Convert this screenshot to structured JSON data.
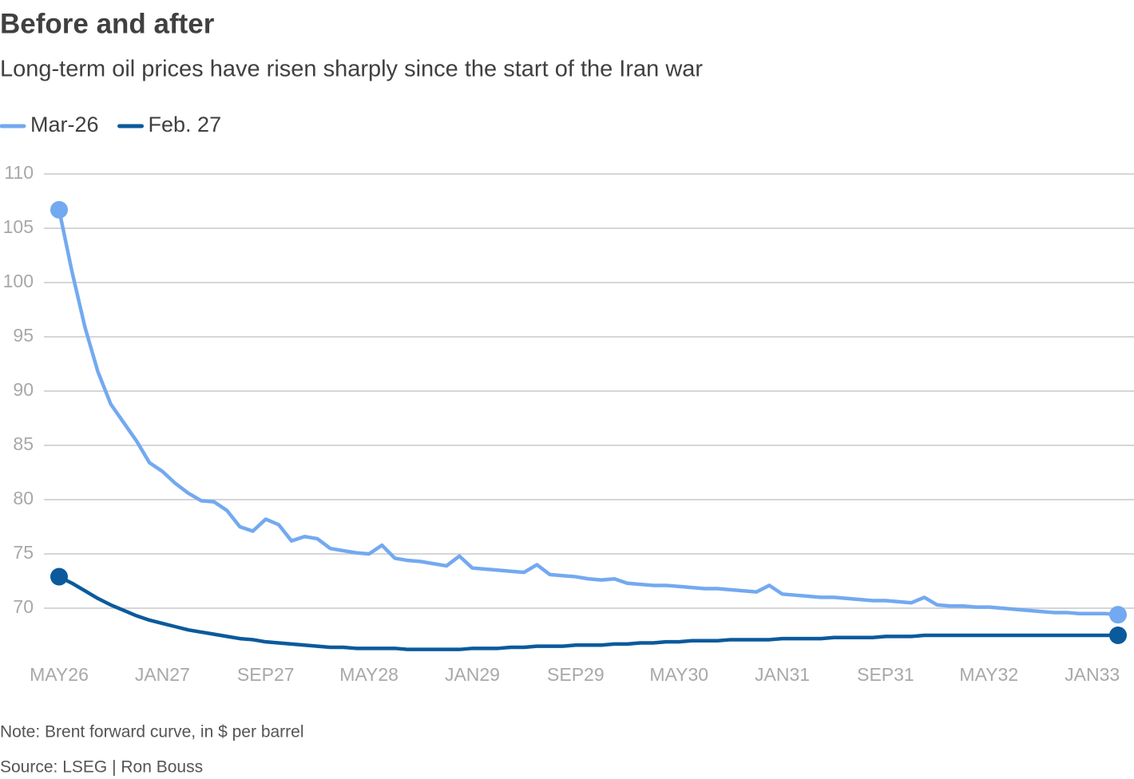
{
  "chart_data": {
    "type": "line",
    "title": "Before and after",
    "subtitle": "Long-term oil prices have risen sharply since the start of the Iran war",
    "note": "Note: Brent forward curve, in $ per barrel",
    "source": "Source: LSEG | Ron Bouss",
    "categories": [
      "MAY26",
      null,
      null,
      null,
      null,
      null,
      null,
      null,
      "JAN27",
      null,
      null,
      null,
      null,
      null,
      null,
      null,
      "SEP27",
      null,
      null,
      null,
      null,
      null,
      null,
      null,
      "MAY28",
      null,
      null,
      null,
      null,
      null,
      null,
      null,
      "JAN29",
      null,
      null,
      null,
      null,
      null,
      null,
      null,
      "SEP29",
      null,
      null,
      null,
      null,
      null,
      null,
      null,
      "MAY30",
      null,
      null,
      null,
      null,
      null,
      null,
      null,
      "JAN31",
      null,
      null,
      null,
      null,
      null,
      null,
      null,
      "SEP31",
      null,
      null,
      null,
      null,
      null,
      null,
      null,
      "MAY32",
      null,
      null,
      null,
      null,
      null,
      null,
      null,
      "JAN33",
      null,
      null
    ],
    "series": [
      {
        "name": "Mar-26",
        "color": "#73a9f0",
        "values": [
          106.7,
          101.0,
          95.9,
          91.8,
          88.8,
          87.1,
          85.4,
          83.4,
          82.6,
          81.5,
          80.6,
          79.9,
          79.8,
          79.0,
          77.5,
          77.1,
          78.2,
          77.7,
          76.2,
          76.6,
          76.4,
          75.5,
          75.3,
          75.1,
          75.0,
          75.8,
          74.6,
          74.4,
          74.3,
          74.1,
          73.9,
          74.8,
          73.7,
          73.6,
          73.5,
          73.4,
          73.3,
          74.0,
          73.1,
          73.0,
          72.9,
          72.7,
          72.6,
          72.7,
          72.3,
          72.2,
          72.1,
          72.1,
          72.0,
          71.9,
          71.8,
          71.8,
          71.7,
          71.6,
          71.5,
          72.1,
          71.3,
          71.2,
          71.1,
          71.0,
          71.0,
          70.9,
          70.8,
          70.7,
          70.7,
          70.6,
          70.5,
          71.0,
          70.3,
          70.2,
          70.2,
          70.1,
          70.1,
          70.0,
          69.9,
          69.8,
          69.7,
          69.6,
          69.6,
          69.5,
          69.5,
          69.5,
          69.4
        ]
      },
      {
        "name": "Feb. 27",
        "color": "#0b5a9c",
        "values": [
          72.9,
          72.3,
          71.6,
          70.9,
          70.3,
          69.8,
          69.3,
          68.9,
          68.6,
          68.3,
          68.0,
          67.8,
          67.6,
          67.4,
          67.2,
          67.1,
          66.9,
          66.8,
          66.7,
          66.6,
          66.5,
          66.4,
          66.4,
          66.3,
          66.3,
          66.3,
          66.3,
          66.2,
          66.2,
          66.2,
          66.2,
          66.2,
          66.3,
          66.3,
          66.3,
          66.4,
          66.4,
          66.5,
          66.5,
          66.5,
          66.6,
          66.6,
          66.6,
          66.7,
          66.7,
          66.8,
          66.8,
          66.9,
          66.9,
          67.0,
          67.0,
          67.0,
          67.1,
          67.1,
          67.1,
          67.1,
          67.2,
          67.2,
          67.2,
          67.2,
          67.3,
          67.3,
          67.3,
          67.3,
          67.4,
          67.4,
          67.4,
          67.5,
          67.5,
          67.5,
          67.5,
          67.5,
          67.5,
          67.5,
          67.5,
          67.5,
          67.5,
          67.5,
          67.5,
          67.5,
          67.5,
          67.5,
          67.5
        ]
      }
    ],
    "ylim": [
      65.5,
      110
    ],
    "yticks": [
      70,
      75,
      80,
      85,
      90,
      95,
      100,
      105,
      110
    ],
    "grid": true,
    "end_markers": true
  }
}
